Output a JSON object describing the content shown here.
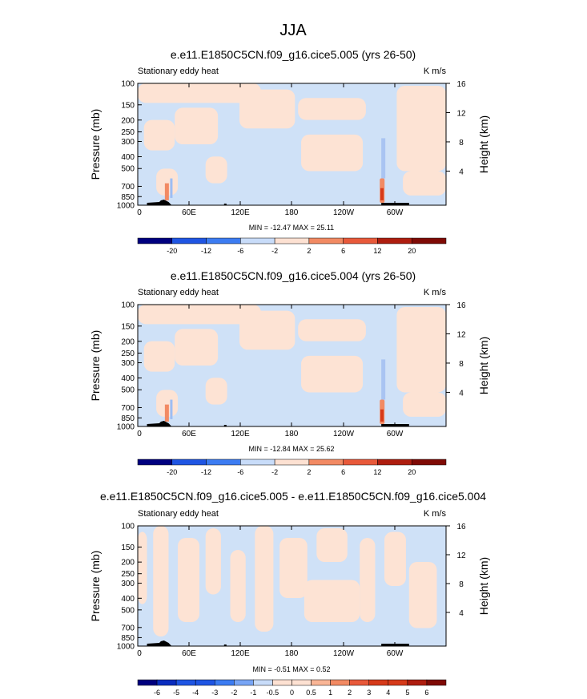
{
  "page_title": "JJA",
  "colorbar_colors": [
    "#00007f",
    "#0a2dbe",
    "#1f55e3",
    "#3c7cf2",
    "#78a5f5",
    "#c8dcf9",
    "#fde1d2",
    "#f9b596",
    "#f28a63",
    "#e8593a",
    "#d63a1a",
    "#ae1d0f",
    "#7f0a05"
  ],
  "chart_data": [
    {
      "type": "heatmap",
      "title": "e.e11.E1850C5CN.f09_g16.cice5.005 (yrs 26-50)",
      "subtitle_left": "Stationary eddy heat",
      "units": "K m/s",
      "ylabel": "Pressure (mb)",
      "ylabel_right": "Height (km)",
      "x_ticks": [
        "0",
        "60E",
        "120E",
        "180",
        "120W",
        "60W"
      ],
      "y_ticks": [
        "100",
        "150",
        "200",
        "250",
        "300",
        "400",
        "500",
        "700",
        "850",
        "1000"
      ],
      "y_right_ticks": [
        "16",
        "12",
        "8",
        "4"
      ],
      "stats": "MIN = -12.47  MAX =  25.11",
      "colorbar_labels": [
        "-20",
        "-12",
        "-6",
        "-2",
        "2",
        "6",
        "12",
        "20"
      ],
      "ylim": [
        1000,
        100
      ],
      "xlim": [
        0,
        360
      ]
    },
    {
      "type": "heatmap",
      "title": "e.e11.E1850C5CN.f09_g16.cice5.004 (yrs 26-50)",
      "subtitle_left": "Stationary eddy heat",
      "units": "K m/s",
      "ylabel": "Pressure (mb)",
      "ylabel_right": "Height (km)",
      "x_ticks": [
        "0",
        "60E",
        "120E",
        "180",
        "120W",
        "60W"
      ],
      "y_ticks": [
        "100",
        "150",
        "200",
        "250",
        "300",
        "400",
        "500",
        "700",
        "850",
        "1000"
      ],
      "y_right_ticks": [
        "16",
        "12",
        "8",
        "4"
      ],
      "stats": "MIN = -12.84  MAX =  25.62",
      "colorbar_labels": [
        "-20",
        "-12",
        "-6",
        "-2",
        "2",
        "6",
        "12",
        "20"
      ],
      "ylim": [
        1000,
        100
      ],
      "xlim": [
        0,
        360
      ]
    },
    {
      "type": "heatmap",
      "title": "e.e11.E1850C5CN.f09_g16.cice5.005 - e.e11.E1850C5CN.f09_g16.cice5.004",
      "subtitle_left": "Stationary eddy heat",
      "units": "K m/s",
      "ylabel": "Pressure (mb)",
      "ylabel_right": "Height (km)",
      "x_ticks": [
        "0",
        "60E",
        "120E",
        "180",
        "120W",
        "60W"
      ],
      "y_ticks": [
        "100",
        "150",
        "200",
        "250",
        "300",
        "400",
        "500",
        "700",
        "850",
        "1000"
      ],
      "y_right_ticks": [
        "16",
        "12",
        "8",
        "4"
      ],
      "stats": "MIN = -0.51  MAX =  0.52",
      "colorbar_labels": [
        "-6",
        "-5",
        "-4",
        "-3",
        "-2",
        "-1",
        "-0.5",
        "0",
        "0.5",
        "1",
        "2",
        "3",
        "4",
        "5",
        "6"
      ],
      "ylim": [
        1000,
        100
      ],
      "xlim": [
        0,
        360
      ]
    }
  ]
}
